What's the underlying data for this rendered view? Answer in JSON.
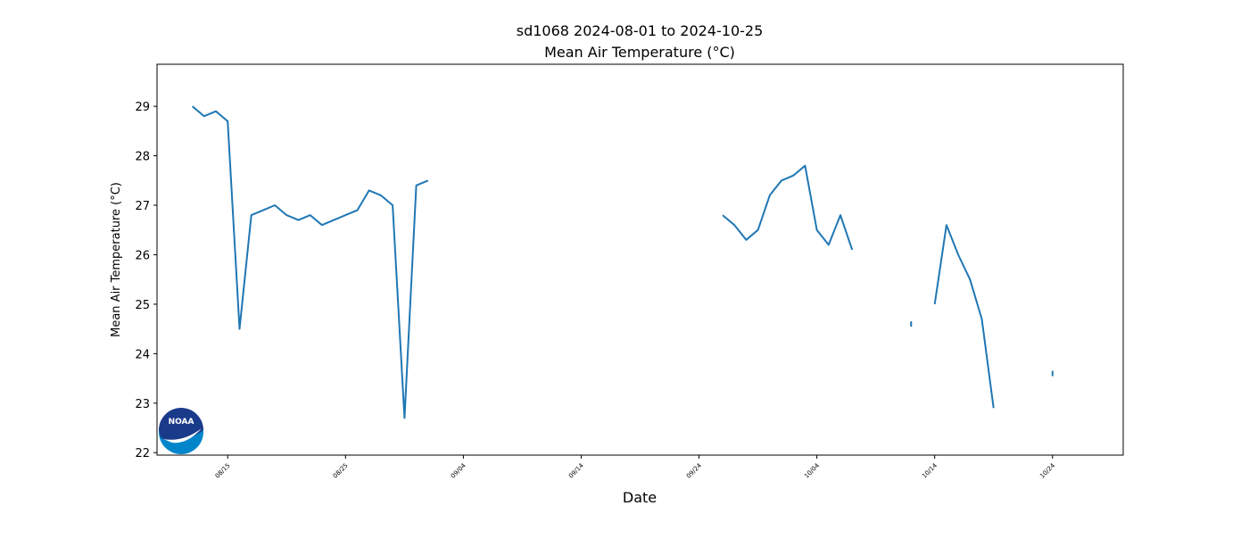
{
  "chart_data": {
    "type": "line",
    "title": "sd1068 2024-08-01 to 2024-10-25",
    "subtitle": "Mean Air Temperature (°C)",
    "x_label": "Date",
    "y_label": "Mean Air Temperature (°C)",
    "logo": "NOAA",
    "x": [
      "2024-08-12",
      "2024-08-13",
      "2024-08-14",
      "2024-08-15",
      "2024-08-16",
      "2024-08-17",
      "2024-08-18",
      "2024-08-19",
      "2024-08-20",
      "2024-08-21",
      "2024-08-22",
      "2024-08-23",
      "2024-08-24",
      "2024-08-25",
      "2024-08-26",
      "2024-08-27",
      "2024-08-28",
      "2024-08-29",
      "2024-08-30",
      "2024-08-31",
      "2024-09-01",
      "2024-09-02",
      "2024-09-03",
      "2024-09-04",
      "2024-09-05",
      "2024-09-06",
      "2024-09-07",
      "2024-09-08",
      "2024-09-09",
      "2024-09-10",
      "2024-09-11",
      "2024-09-12",
      "2024-09-13",
      "2024-09-14",
      "2024-09-15",
      "2024-09-16",
      "2024-09-17",
      "2024-09-18",
      "2024-09-19",
      "2024-09-20",
      "2024-09-21",
      "2024-09-22",
      "2024-09-23",
      "2024-09-24",
      "2024-09-25",
      "2024-09-26",
      "2024-09-27",
      "2024-09-28",
      "2024-09-29",
      "2024-09-30",
      "2024-10-01",
      "2024-10-02",
      "2024-10-03",
      "2024-10-04",
      "2024-10-05",
      "2024-10-06",
      "2024-10-07",
      "2024-10-08",
      "2024-10-09",
      "2024-10-10",
      "2024-10-11",
      "2024-10-12",
      "2024-10-13",
      "2024-10-14",
      "2024-10-15",
      "2024-10-16",
      "2024-10-17",
      "2024-10-18",
      "2024-10-19",
      "2024-10-20",
      "2024-10-21",
      "2024-10-22",
      "2024-10-23",
      "2024-10-24"
    ],
    "series": [
      {
        "color": "#1f77b4",
        "values": [
          29.0,
          28.8,
          28.9,
          28.7,
          24.5,
          26.8,
          26.9,
          27.0,
          26.8,
          26.7,
          26.8,
          26.6,
          26.7,
          26.8,
          26.9,
          27.3,
          27.2,
          27.0,
          22.7,
          27.4,
          27.5,
          null,
          null,
          null,
          null,
          null,
          null,
          null,
          null,
          null,
          null,
          null,
          null,
          null,
          null,
          null,
          null,
          null,
          null,
          null,
          null,
          null,
          null,
          null,
          null,
          26.8,
          26.6,
          26.3,
          26.5,
          27.2,
          27.5,
          27.6,
          27.8,
          26.5,
          26.2,
          26.8,
          26.1,
          null,
          null,
          null,
          null,
          24.6,
          null,
          25.0,
          26.6,
          26.0,
          25.5,
          24.7,
          22.9,
          null,
          null,
          null,
          null,
          23.6
        ]
      }
    ],
    "xlim": [
      "2024-08-09",
      "2024-10-30"
    ],
    "xticks": [
      {
        "value": "2024-08-15",
        "label": "08/15"
      },
      {
        "value": "2024-08-25",
        "label": "08/25"
      },
      {
        "value": "2024-09-04",
        "label": "09/04"
      },
      {
        "value": "2024-09-14",
        "label": "09/14"
      },
      {
        "value": "2024-09-24",
        "label": "09/24"
      },
      {
        "value": "2024-10-04",
        "label": "10/04"
      },
      {
        "value": "2024-10-14",
        "label": "10/14"
      },
      {
        "value": "2024-10-24",
        "label": "10/24"
      }
    ],
    "ylim": [
      21.95,
      29.85
    ],
    "yticks": [
      22,
      23,
      24,
      25,
      26,
      27,
      28,
      29
    ],
    "grid": false
  }
}
